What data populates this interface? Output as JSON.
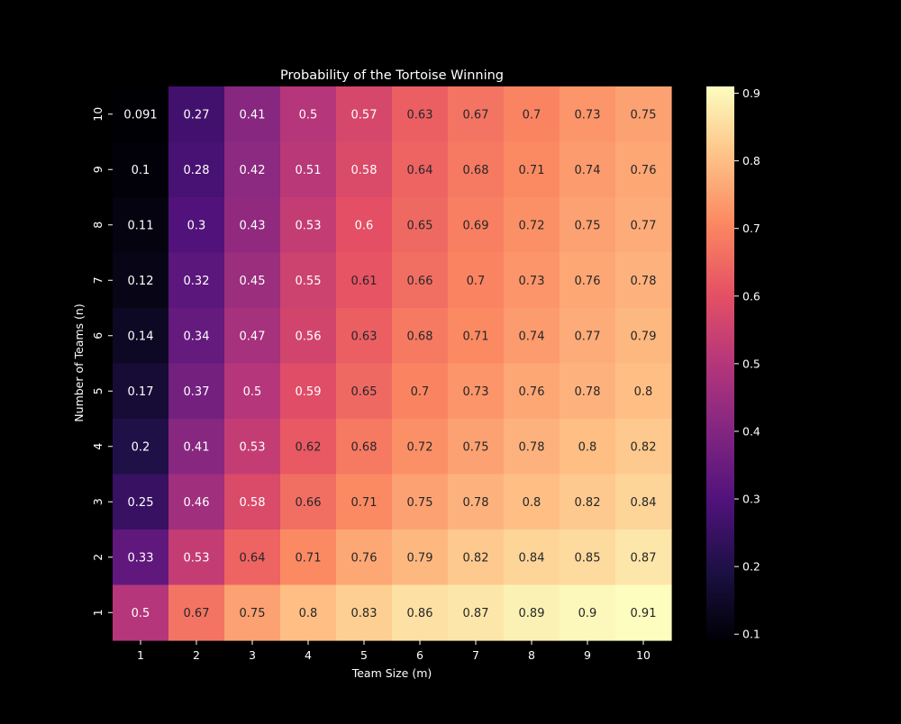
{
  "chart_data": {
    "type": "heatmap",
    "title": "Probability of the Tortoise Winning",
    "xlabel": "Team Size (m)",
    "ylabel": "Number of Teams (n)",
    "x_categories": [
      "1",
      "2",
      "3",
      "4",
      "5",
      "6",
      "7",
      "8",
      "9",
      "10"
    ],
    "y_categories": [
      "10",
      "9",
      "8",
      "7",
      "6",
      "5",
      "4",
      "3",
      "2",
      "1"
    ],
    "cells": [
      [
        "0.091",
        "0.27",
        "0.41",
        "0.5",
        "0.57",
        "0.63",
        "0.67",
        "0.7",
        "0.73",
        "0.75"
      ],
      [
        "0.1",
        "0.28",
        "0.42",
        "0.51",
        "0.58",
        "0.64",
        "0.68",
        "0.71",
        "0.74",
        "0.76"
      ],
      [
        "0.11",
        "0.3",
        "0.43",
        "0.53",
        "0.6",
        "0.65",
        "0.69",
        "0.72",
        "0.75",
        "0.77"
      ],
      [
        "0.12",
        "0.32",
        "0.45",
        "0.55",
        "0.61",
        "0.66",
        "0.7",
        "0.73",
        "0.76",
        "0.78"
      ],
      [
        "0.14",
        "0.34",
        "0.47",
        "0.56",
        "0.63",
        "0.68",
        "0.71",
        "0.74",
        "0.77",
        "0.79"
      ],
      [
        "0.17",
        "0.37",
        "0.5",
        "0.59",
        "0.65",
        "0.7",
        "0.73",
        "0.76",
        "0.78",
        "0.8"
      ],
      [
        "0.2",
        "0.41",
        "0.53",
        "0.62",
        "0.68",
        "0.72",
        "0.75",
        "0.78",
        "0.8",
        "0.82"
      ],
      [
        "0.25",
        "0.46",
        "0.58",
        "0.66",
        "0.71",
        "0.75",
        "0.78",
        "0.8",
        "0.82",
        "0.84"
      ],
      [
        "0.33",
        "0.53",
        "0.64",
        "0.71",
        "0.76",
        "0.79",
        "0.82",
        "0.84",
        "0.85",
        "0.87"
      ],
      [
        "0.5",
        "0.67",
        "0.75",
        "0.8",
        "0.83",
        "0.86",
        "0.87",
        "0.89",
        "0.9",
        "0.91"
      ]
    ],
    "colorbar": {
      "colormap": "magma",
      "range": [
        0.091,
        0.91
      ],
      "ticks": [
        "0.1",
        "0.2",
        "0.3",
        "0.4",
        "0.5",
        "0.6",
        "0.7",
        "0.8",
        "0.9"
      ]
    },
    "colors": {
      "background": "#000000",
      "foreground": "#ffffff",
      "annotation_dark": "#262626",
      "magma_stops": [
        "#000004",
        "#1c1044",
        "#4f127b",
        "#812581",
        "#b5367a",
        "#e55064",
        "#fb8761",
        "#fec287",
        "#fcfdbf"
      ]
    }
  }
}
